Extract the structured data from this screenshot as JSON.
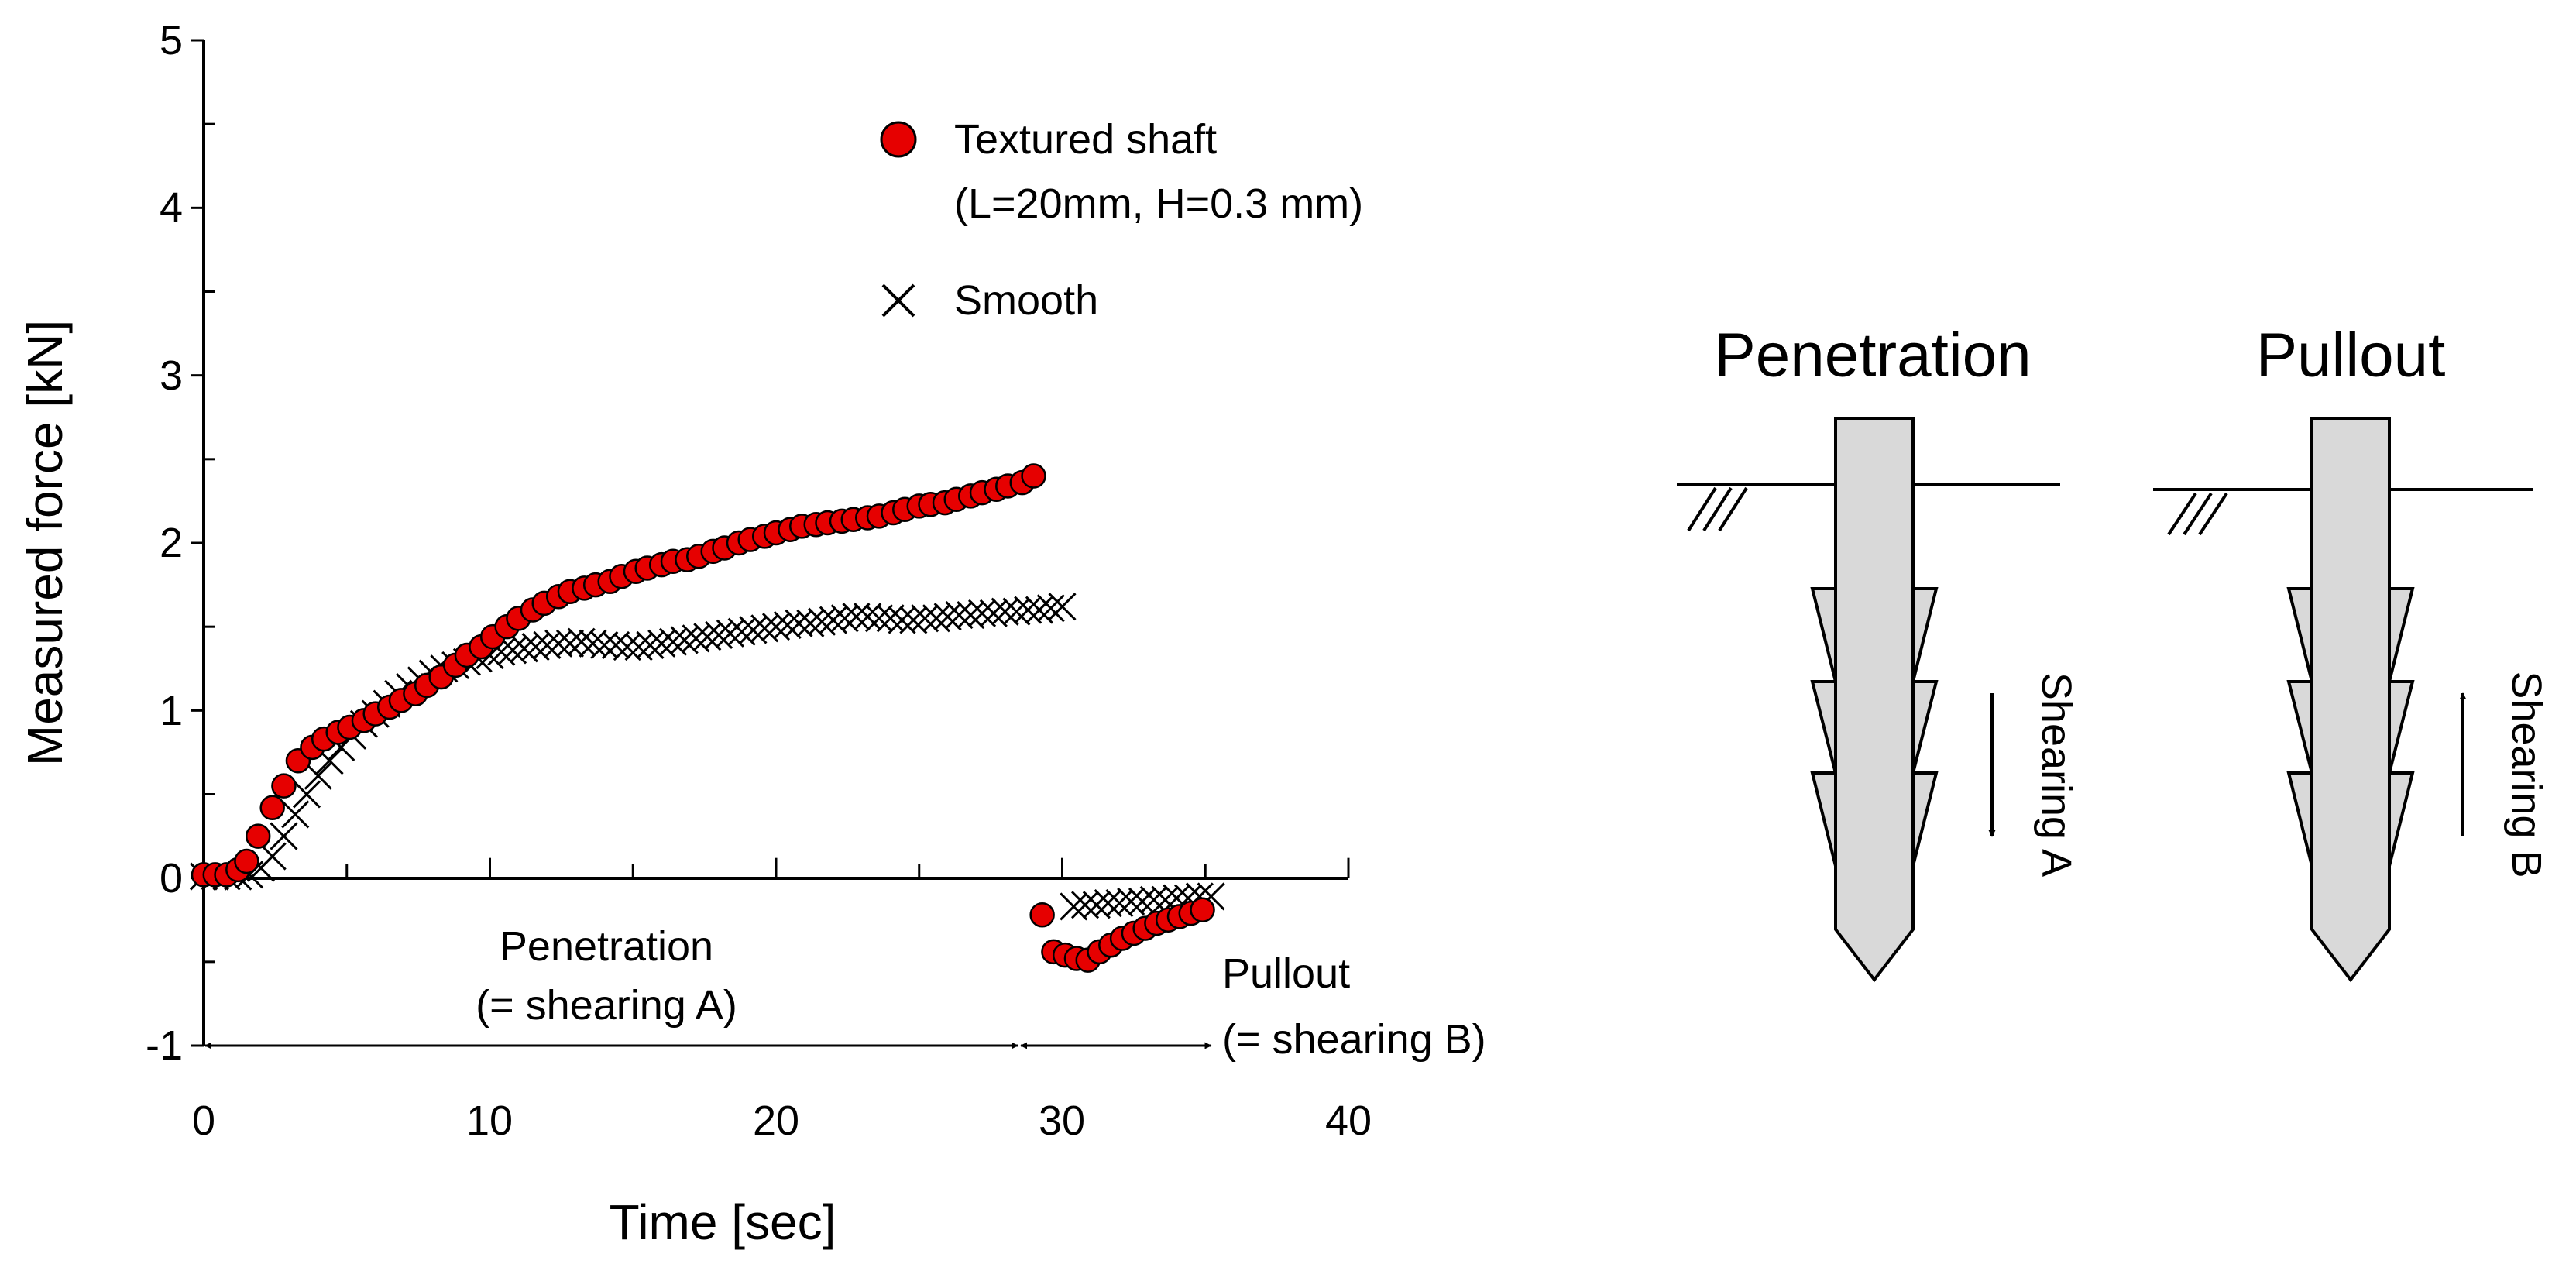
{
  "chart_data": {
    "type": "scatter",
    "title": "",
    "xlabel": "Time [sec]",
    "ylabel": "Measured force [kN]",
    "xlim": [
      0,
      40
    ],
    "ylim": [
      -1,
      5
    ],
    "x_ticks": [
      "0",
      "10",
      "20",
      "30",
      "40"
    ],
    "y_ticks": [
      "-1",
      "0",
      "1",
      "2",
      "3",
      "4",
      "5"
    ],
    "grid": false,
    "legend_position": "top-center",
    "series": [
      {
        "name": "Textured shaft",
        "name_detail": "(L=20mm, H=0.3 mm)",
        "marker": "circle",
        "color": "#e60000",
        "stroke": "#000000",
        "points": [
          [
            0.0,
            0.02
          ],
          [
            0.4,
            0.02
          ],
          [
            0.8,
            0.02
          ],
          [
            1.2,
            0.05
          ],
          [
            1.5,
            0.1
          ],
          [
            1.9,
            0.25
          ],
          [
            2.4,
            0.42
          ],
          [
            2.8,
            0.55
          ],
          [
            3.3,
            0.7
          ],
          [
            3.8,
            0.78
          ],
          [
            4.2,
            0.83
          ],
          [
            4.7,
            0.87
          ],
          [
            5.1,
            0.9
          ],
          [
            5.6,
            0.94
          ],
          [
            6.0,
            0.98
          ],
          [
            6.5,
            1.02
          ],
          [
            6.9,
            1.06
          ],
          [
            7.4,
            1.1
          ],
          [
            7.8,
            1.15
          ],
          [
            8.3,
            1.2
          ],
          [
            8.8,
            1.27
          ],
          [
            9.2,
            1.33
          ],
          [
            9.7,
            1.38
          ],
          [
            10.1,
            1.44
          ],
          [
            10.6,
            1.5
          ],
          [
            11.0,
            1.55
          ],
          [
            11.5,
            1.6
          ],
          [
            11.9,
            1.64
          ],
          [
            12.4,
            1.68
          ],
          [
            12.8,
            1.71
          ],
          [
            13.3,
            1.73
          ],
          [
            13.7,
            1.75
          ],
          [
            14.2,
            1.77
          ],
          [
            14.6,
            1.8
          ],
          [
            15.1,
            1.83
          ],
          [
            15.5,
            1.85
          ],
          [
            16.0,
            1.87
          ],
          [
            16.4,
            1.89
          ],
          [
            16.9,
            1.9
          ],
          [
            17.3,
            1.92
          ],
          [
            17.8,
            1.95
          ],
          [
            18.2,
            1.97
          ],
          [
            18.7,
            2.0
          ],
          [
            19.1,
            2.02
          ],
          [
            19.6,
            2.04
          ],
          [
            20.0,
            2.06
          ],
          [
            20.5,
            2.08
          ],
          [
            20.9,
            2.1
          ],
          [
            21.4,
            2.11
          ],
          [
            21.8,
            2.12
          ],
          [
            22.3,
            2.13
          ],
          [
            22.7,
            2.14
          ],
          [
            23.2,
            2.15
          ],
          [
            23.6,
            2.16
          ],
          [
            24.1,
            2.18
          ],
          [
            24.5,
            2.2
          ],
          [
            25.0,
            2.22
          ],
          [
            25.4,
            2.23
          ],
          [
            25.9,
            2.24
          ],
          [
            26.3,
            2.26
          ],
          [
            26.8,
            2.28
          ],
          [
            27.2,
            2.3
          ],
          [
            27.7,
            2.32
          ],
          [
            28.1,
            2.34
          ],
          [
            28.6,
            2.36
          ],
          [
            29.0,
            2.4
          ],
          [
            29.3,
            -0.22
          ],
          [
            29.7,
            -0.44
          ],
          [
            30.1,
            -0.46
          ],
          [
            30.5,
            -0.48
          ],
          [
            30.9,
            -0.49
          ],
          [
            31.3,
            -0.44
          ],
          [
            31.7,
            -0.4
          ],
          [
            32.1,
            -0.36
          ],
          [
            32.5,
            -0.33
          ],
          [
            32.9,
            -0.3
          ],
          [
            33.3,
            -0.27
          ],
          [
            33.7,
            -0.25
          ],
          [
            34.1,
            -0.23
          ],
          [
            34.5,
            -0.21
          ],
          [
            34.9,
            -0.19
          ]
        ]
      },
      {
        "name": "Smooth",
        "marker": "x",
        "color": "#000000",
        "points": [
          [
            0.0,
            0.01
          ],
          [
            0.4,
            0.01
          ],
          [
            0.8,
            0.01
          ],
          [
            1.2,
            0.01
          ],
          [
            1.6,
            0.02
          ],
          [
            2.0,
            0.06
          ],
          [
            2.4,
            0.13
          ],
          [
            2.8,
            0.25
          ],
          [
            3.2,
            0.38
          ],
          [
            3.6,
            0.5
          ],
          [
            4.0,
            0.61
          ],
          [
            4.4,
            0.7
          ],
          [
            4.8,
            0.78
          ],
          [
            5.2,
            0.85
          ],
          [
            5.6,
            0.92
          ],
          [
            6.0,
            0.98
          ],
          [
            6.4,
            1.04
          ],
          [
            6.8,
            1.1
          ],
          [
            7.2,
            1.14
          ],
          [
            7.6,
            1.18
          ],
          [
            8.0,
            1.22
          ],
          [
            8.4,
            1.25
          ],
          [
            8.8,
            1.27
          ],
          [
            9.2,
            1.29
          ],
          [
            9.6,
            1.31
          ],
          [
            10.0,
            1.33
          ],
          [
            10.4,
            1.35
          ],
          [
            10.8,
            1.36
          ],
          [
            11.2,
            1.37
          ],
          [
            11.6,
            1.38
          ],
          [
            12.0,
            1.39
          ],
          [
            12.4,
            1.4
          ],
          [
            12.8,
            1.4
          ],
          [
            13.2,
            1.41
          ],
          [
            13.6,
            1.4
          ],
          [
            14.0,
            1.39
          ],
          [
            14.4,
            1.39
          ],
          [
            14.8,
            1.38
          ],
          [
            15.2,
            1.38
          ],
          [
            15.6,
            1.39
          ],
          [
            16.0,
            1.4
          ],
          [
            16.4,
            1.41
          ],
          [
            16.8,
            1.42
          ],
          [
            17.2,
            1.43
          ],
          [
            17.6,
            1.44
          ],
          [
            18.0,
            1.45
          ],
          [
            18.4,
            1.46
          ],
          [
            18.8,
            1.47
          ],
          [
            19.2,
            1.48
          ],
          [
            19.6,
            1.49
          ],
          [
            20.0,
            1.5
          ],
          [
            20.4,
            1.51
          ],
          [
            20.8,
            1.52
          ],
          [
            21.2,
            1.52
          ],
          [
            21.6,
            1.53
          ],
          [
            22.0,
            1.54
          ],
          [
            22.4,
            1.55
          ],
          [
            22.8,
            1.56
          ],
          [
            23.2,
            1.56
          ],
          [
            23.6,
            1.55
          ],
          [
            24.0,
            1.55
          ],
          [
            24.4,
            1.54
          ],
          [
            24.8,
            1.54
          ],
          [
            25.2,
            1.55
          ],
          [
            25.6,
            1.55
          ],
          [
            26.0,
            1.56
          ],
          [
            26.4,
            1.57
          ],
          [
            26.8,
            1.57
          ],
          [
            27.2,
            1.58
          ],
          [
            27.6,
            1.58
          ],
          [
            28.0,
            1.59
          ],
          [
            28.4,
            1.59
          ],
          [
            28.8,
            1.6
          ],
          [
            29.2,
            1.6
          ],
          [
            29.6,
            1.61
          ],
          [
            30.0,
            1.62
          ],
          [
            30.4,
            -0.17
          ],
          [
            30.8,
            -0.16
          ],
          [
            31.2,
            -0.16
          ],
          [
            31.6,
            -0.15
          ],
          [
            32.0,
            -0.15
          ],
          [
            32.4,
            -0.14
          ],
          [
            32.8,
            -0.14
          ],
          [
            33.2,
            -0.13
          ],
          [
            33.6,
            -0.13
          ],
          [
            34.0,
            -0.12
          ],
          [
            34.4,
            -0.12
          ],
          [
            34.8,
            -0.11
          ],
          [
            35.2,
            -0.11
          ]
        ]
      }
    ],
    "annotations": {
      "penetration_label": "Penetration",
      "penetration_sub": "(= shearing A)",
      "penetration_range": [
        0,
        28.5
      ],
      "pullout_label": "Pullout",
      "pullout_sub": "(= shearing B)",
      "pullout_range": [
        28.5,
        35.2
      ],
      "arrow_y": -1
    }
  },
  "diagram": {
    "penetration_title": "Penetration",
    "pullout_title": "Pullout",
    "shearing_a_label": "Shearing A",
    "shearing_b_label": "Shearing B",
    "shaft_fill": "#d9d9d9"
  }
}
